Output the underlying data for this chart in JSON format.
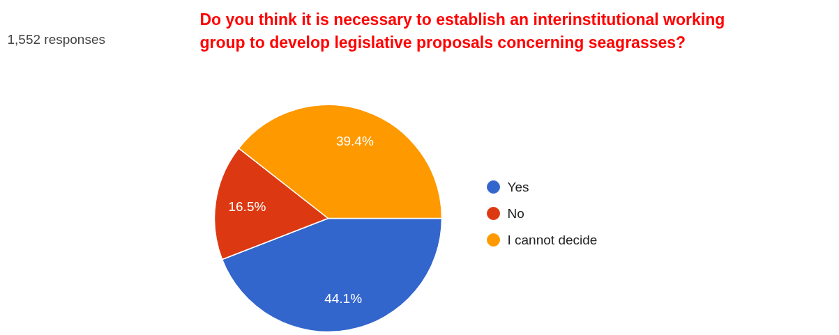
{
  "chart_data": {
    "type": "pie",
    "title": "Do you think it is necessary to establish an interinstitutional working group to develop legislative proposals concerning seagrasses?",
    "subtitle": "1,552 responses",
    "categories": [
      "Yes",
      "No",
      "I cannot decide"
    ],
    "values": [
      44.1,
      16.5,
      39.4
    ],
    "colors": [
      "#3366cc",
      "#dc3912",
      "#ff9900"
    ],
    "value_labels": [
      "44.1%",
      "16.5%",
      "39.4%"
    ],
    "legend": "right"
  }
}
